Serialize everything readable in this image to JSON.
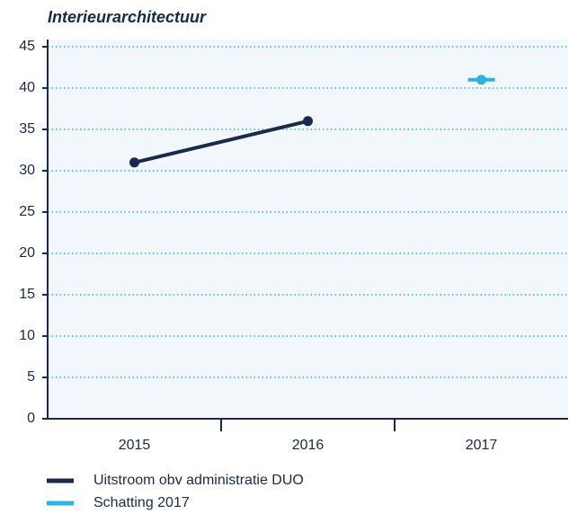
{
  "chart_data": {
    "type": "line",
    "title": "Interieurarchitectuur",
    "categories": [
      "2015",
      "2016",
      "2017"
    ],
    "series": [
      {
        "name": "Uitstroom obv administratie DUO",
        "color": "#1b2a4a",
        "values": [
          31,
          36,
          null
        ]
      },
      {
        "name": "Schatting 2017",
        "color": "#2bb4e0",
        "values": [
          null,
          null,
          41
        ]
      }
    ],
    "ylim": [
      0,
      45
    ],
    "yticks": [
      0,
      5,
      10,
      15,
      20,
      25,
      30,
      35,
      40,
      45
    ],
    "grid": true
  }
}
